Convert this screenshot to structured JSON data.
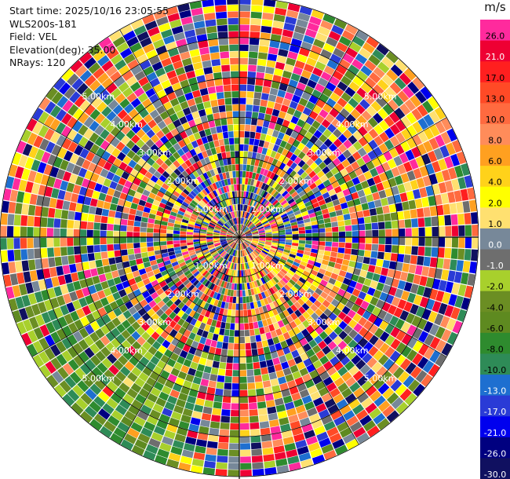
{
  "info": {
    "start_time": "Start time: 2025/10/16 23:05:55",
    "instrument": "WLS200s-181",
    "field": "Field: VEL",
    "elevation": "Elevation(deg): 35.00",
    "nrays": "NRays: 120"
  },
  "colorbar": {
    "unit": "m/s",
    "levels": [
      {
        "label": "26.0",
        "color": "#ff2a9d"
      },
      {
        "label": "21.0",
        "color": "#ee0033"
      },
      {
        "label": "17.0",
        "color": "#ff1f1f"
      },
      {
        "label": "13.0",
        "color": "#ff4a26"
      },
      {
        "label": "10.0",
        "color": "#ff6a3f"
      },
      {
        "label": "8.0",
        "color": "#ff8c5a"
      },
      {
        "label": "6.0",
        "color": "#ffa020"
      },
      {
        "label": "4.0",
        "color": "#ffd21a"
      },
      {
        "label": "2.0",
        "color": "#ffff00"
      },
      {
        "label": "1.0",
        "color": "#ffe070"
      },
      {
        "label": "0.0",
        "color": "#778899"
      },
      {
        "label": "-1.0",
        "color": "#6e6e6e"
      },
      {
        "label": "-2.0",
        "color": "#a8d02c"
      },
      {
        "label": "-4.0",
        "color": "#6b8e23"
      },
      {
        "label": "-6.0",
        "color": "#5e8a20"
      },
      {
        "label": "-8.0",
        "color": "#2e8b2e"
      },
      {
        "label": "-10.0",
        "color": "#2e8b57"
      },
      {
        "label": "-13.0",
        "color": "#1e6fd0"
      },
      {
        "label": "-17.0",
        "color": "#2a3bd6"
      },
      {
        "label": "-21.0",
        "color": "#0000ee"
      },
      {
        "label": "-26.0",
        "color": "#000080"
      },
      {
        "label": "-30.0",
        "color": "#101060"
      }
    ]
  },
  "chart_data": {
    "type": "heatmap",
    "title": "",
    "field": "VEL",
    "unit": "m/s",
    "elevation_deg": 35.0,
    "nrays": 120,
    "nbins": 36,
    "max_range_km": 6.0,
    "range_rings_km": [
      1,
      2,
      3,
      4,
      5,
      6
    ],
    "range_ring_labels": [
      "1.00km",
      "2.00km",
      "3.00km",
      "4.00km",
      "5.00km"
    ],
    "value_range": [
      -30,
      26
    ],
    "ray_angle_spokes_deg": [
      0,
      30,
      60,
      90,
      120,
      150,
      180,
      210,
      240,
      270,
      300,
      330
    ],
    "sectors": [
      {
        "azimuth_from_deg": 200,
        "azimuth_to_deg": 250,
        "dominant": "negative (green)"
      },
      {
        "azimuth_from_deg": 100,
        "azimuth_to_deg": 150,
        "dominant": "mixed near center, yellow/orange"
      },
      {
        "azimuth_from_deg": 40,
        "azimuth_to_deg": 80,
        "dominant": "positive (orange/yellow)"
      }
    ]
  }
}
